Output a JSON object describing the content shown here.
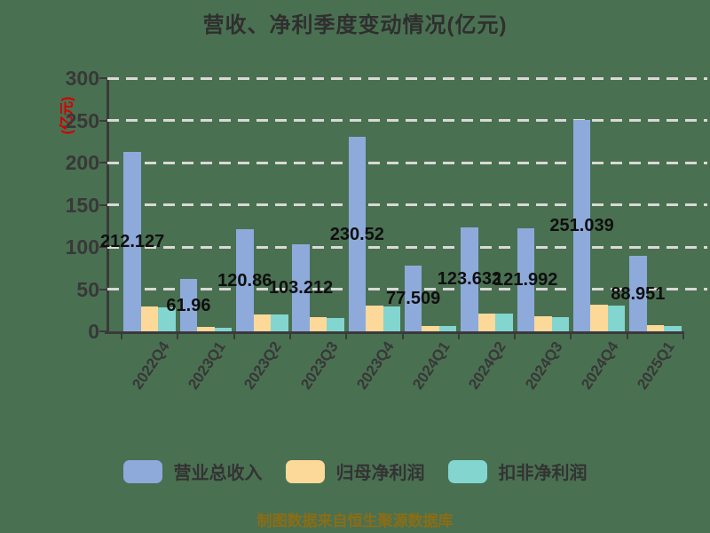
{
  "page": {
    "background": "#4A7052"
  },
  "title": {
    "color": "#2F2F2F"
  },
  "footer": {
    "text": "制图数据来自恒生聚源数据库",
    "color": "#8B6D14"
  },
  "axis": {
    "line_color": "#3A3A3A",
    "tick_label_color": "#383838",
    "grid_color": "#D9D9D6"
  },
  "chart_data": {
    "type": "bar",
    "title": "营收、净利季度变动情况(亿元)",
    "ylabel": "(亿元)",
    "ylabel_color": "#D40000",
    "categories": [
      "2022Q4",
      "2023Q1",
      "2023Q2",
      "2023Q3",
      "2023Q4",
      "2024Q1",
      "2024Q2",
      "2024Q3",
      "2024Q4",
      "2025Q1"
    ],
    "series": [
      {
        "name": "营业总收入",
        "color": "#8EAADB",
        "values": [
          212.127,
          61.96,
          120.86,
          103.212,
          230.52,
          77.509,
          123.632,
          121.992,
          251.039,
          88.951
        ],
        "bar_labels": [
          "212.127",
          "61.96",
          "120.86",
          "103.212",
          "230.52",
          "77.509",
          "123.632",
          "121.992",
          "251.039",
          "88.951"
        ]
      },
      {
        "name": "归母净利润",
        "color": "#FCD999",
        "values": [
          29,
          5.5,
          20,
          16.5,
          31,
          6.5,
          21,
          17.5,
          32,
          7.5
        ],
        "values_estimated_from_pixels": true
      },
      {
        "name": "扣非净利润",
        "color": "#82D6CF",
        "values": [
          28,
          4.5,
          19.5,
          16,
          29,
          6,
          21,
          16.5,
          30.5,
          6.5
        ],
        "values_estimated_from_pixels": true
      }
    ],
    "ylim": [
      0,
      300
    ],
    "yticks": [
      0,
      50,
      100,
      150,
      200,
      250,
      300
    ],
    "grid": "horizontal-dashed-white",
    "legend_position": "bottom",
    "bar_label_style": "black-bold-centered-on-blue-bar-midheight"
  }
}
